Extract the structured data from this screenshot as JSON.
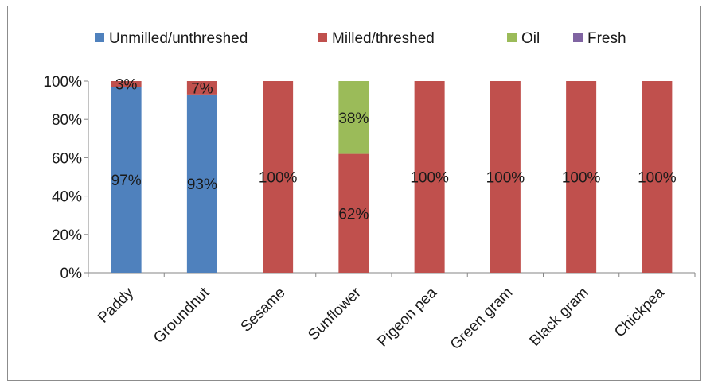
{
  "chart_data": {
    "type": "bar",
    "stacked": true,
    "categories": [
      "Paddy",
      "Groundnut",
      "Sesame",
      "Sunflower",
      "Pigeon pea",
      "Green gram",
      "Black gram",
      "Chickpea"
    ],
    "series": [
      {
        "name": "Unmilled/unthreshed",
        "color": "#4f81bd",
        "values": [
          97,
          93,
          0,
          0,
          0,
          0,
          0,
          0
        ]
      },
      {
        "name": "Milled/threshed",
        "color": "#c0504d",
        "values": [
          3,
          7,
          100,
          62,
          100,
          100,
          100,
          100
        ]
      },
      {
        "name": "Oil",
        "color": "#9bbb59",
        "values": [
          0,
          0,
          0,
          38,
          0,
          0,
          0,
          0
        ]
      },
      {
        "name": "Fresh",
        "color": "#8064a2",
        "values": [
          0,
          0,
          0,
          0,
          0,
          0,
          0,
          0
        ]
      }
    ],
    "data_labels": [
      [
        "97%",
        "93%",
        "",
        "",
        "",
        "",
        "",
        ""
      ],
      [
        "3%",
        "7%",
        "100%",
        "62%",
        "100%",
        "100%",
        "100%",
        "100%"
      ],
      [
        "",
        "",
        "",
        "38%",
        "",
        "",
        "",
        ""
      ],
      [
        "",
        "",
        "",
        "",
        "",
        "",
        "",
        ""
      ]
    ],
    "ylim": [
      0,
      100
    ],
    "yticks": [
      "0%",
      "20%",
      "40%",
      "60%",
      "80%",
      "100%"
    ],
    "ytick_values": [
      0,
      20,
      40,
      60,
      80,
      100
    ],
    "legend_position": "top",
    "grid": false,
    "title": "",
    "xlabel": "",
    "ylabel": ""
  }
}
